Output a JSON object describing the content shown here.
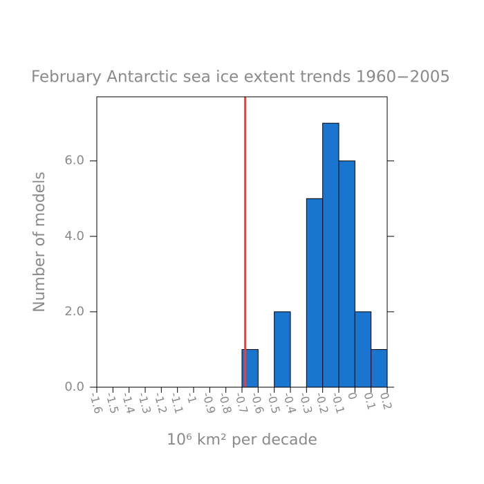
{
  "chart_data": {
    "type": "histogram",
    "title": "February Antarctic sea ice extent trends 1960−2005",
    "xlabel": "10⁶ km² per decade",
    "ylabel": "Number of models",
    "bins": [
      -1.6,
      -1.5,
      -1.4,
      -1.3,
      -1.2,
      -1.1,
      -1,
      -0.9,
      -0.8,
      -0.7,
      -0.6,
      -0.5,
      -0.4,
      -0.3,
      -0.2,
      -0.1,
      0,
      0.1,
      0.2
    ],
    "values": [
      0,
      0,
      0,
      0,
      0,
      0,
      0,
      0,
      0,
      1,
      0,
      2,
      0,
      5,
      7,
      6,
      2,
      1
    ],
    "color": "#1a75cf",
    "reference_line": {
      "value": -0.68,
      "color": "#f03c3c"
    },
    "xlim": [
      -1.6,
      0.2
    ],
    "xticks": [
      -1.6,
      -1.5,
      -1.4,
      -1.3,
      -1.2,
      -1.1,
      -1,
      -0.9,
      -0.8,
      -0.7,
      -0.6,
      -0.5,
      -0.4,
      -0.3,
      -0.2,
      -0.1,
      0,
      0.1,
      0.2
    ],
    "ylim": [
      0,
      7.7
    ],
    "yticks": [
      {
        "value": 0,
        "label": "0.0"
      },
      {
        "value": 2,
        "label": "2.0"
      },
      {
        "value": 4,
        "label": "4.0"
      },
      {
        "value": 6,
        "label": "6.0"
      }
    ]
  }
}
